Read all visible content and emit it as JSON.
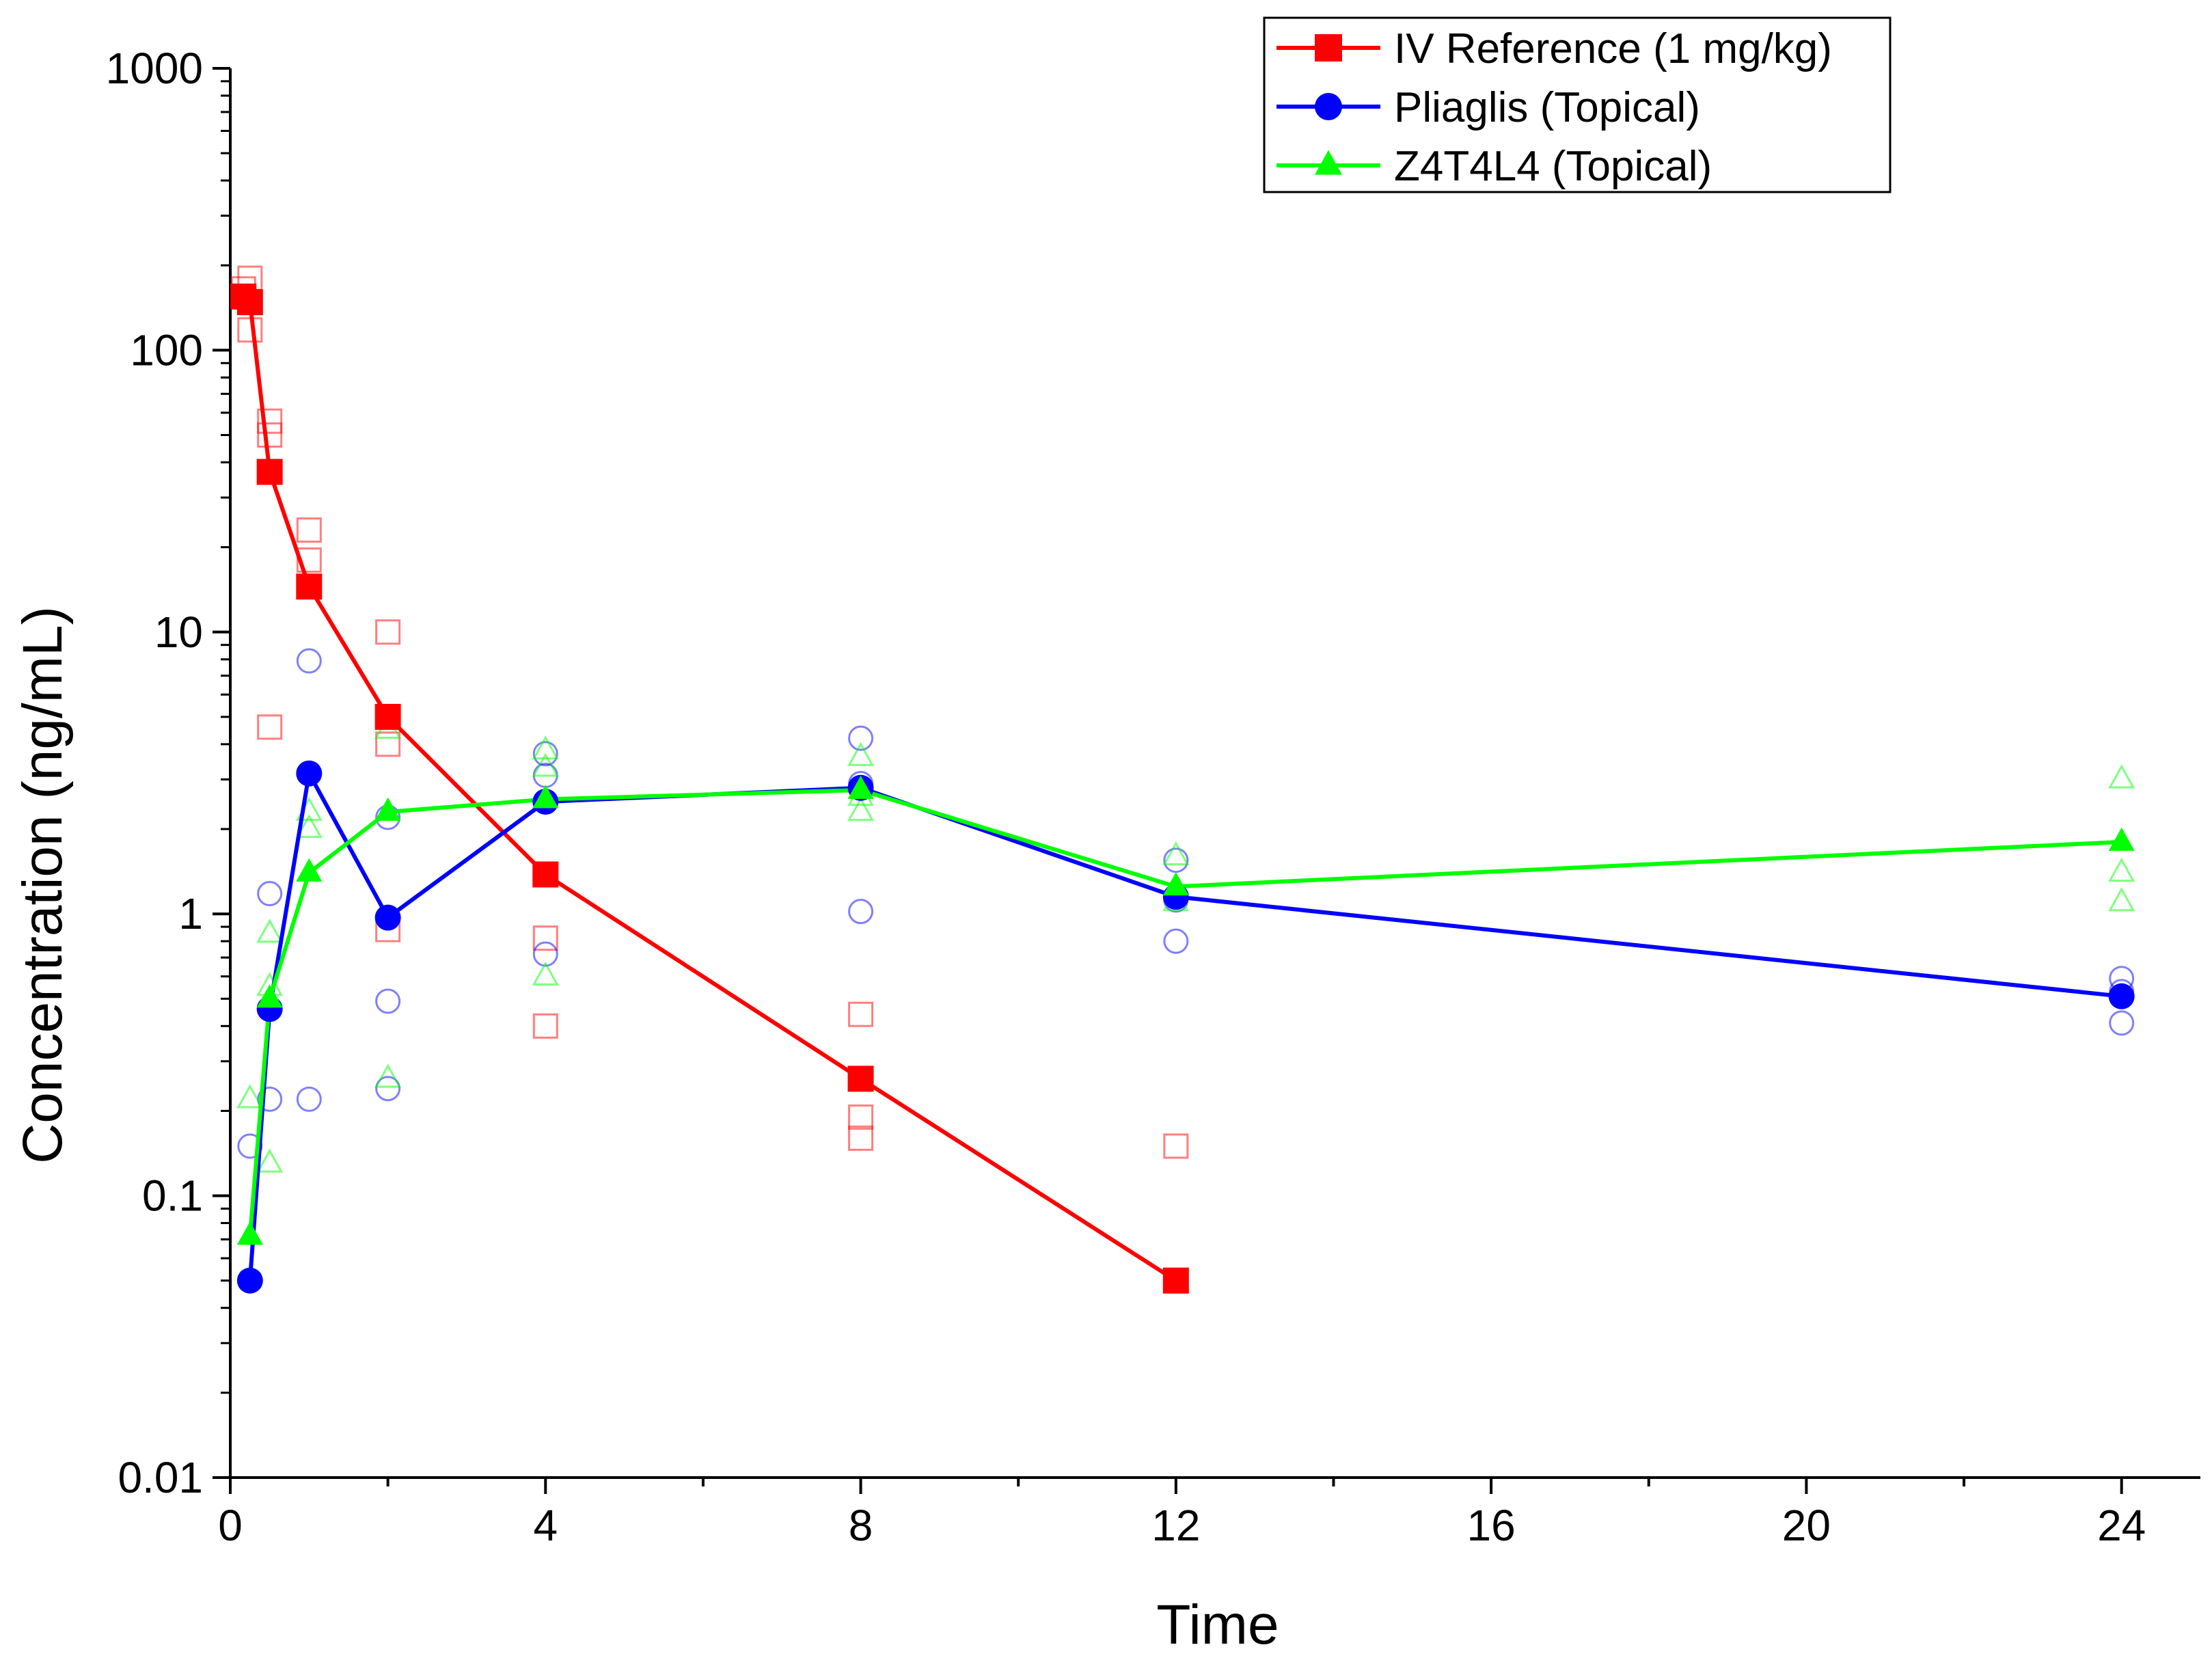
{
  "chart_data": {
    "type": "line",
    "title": "",
    "xlabel": "Time",
    "ylabel": "Concentration (ng/mL)",
    "yscale": "log",
    "xlim": [
      0,
      25
    ],
    "ylim": [
      0.01,
      1000
    ],
    "x_ticks": [
      0,
      4,
      8,
      12,
      16,
      20,
      24
    ],
    "x_tick_labels": [
      "0",
      "4",
      "8",
      "12",
      "16",
      "20",
      "24"
    ],
    "y_ticks": [
      0.01,
      0.1,
      1,
      10,
      100,
      1000
    ],
    "y_tick_labels": [
      "0.01",
      "0.1",
      "1",
      "10",
      "100",
      "1000"
    ],
    "grid": false,
    "legend_position": "top-right",
    "series": [
      {
        "name": "IV Reference (1 mg/kg)",
        "color": "#ff0000",
        "marker": "square",
        "mean": {
          "x": [
            0.167,
            0.25,
            0.5,
            1,
            2,
            4,
            8,
            12
          ],
          "y": [
            155,
            148,
            37,
            14.5,
            5.0,
            1.38,
            0.26,
            0.05
          ]
        },
        "individuals": {
          "x": [
            0.167,
            0.25,
            0.25,
            0.5,
            0.5,
            0.5,
            1,
            1,
            2,
            2,
            2,
            4,
            4,
            8,
            8,
            8,
            12
          ],
          "y": [
            165,
            180,
            118,
            56,
            50,
            4.6,
            23,
            18,
            10,
            4.0,
            0.88,
            0.82,
            0.4,
            0.44,
            0.19,
            0.16,
            0.15
          ]
        }
      },
      {
        "name": "Pliaglis (Topical)",
        "color": "#0000ff",
        "marker": "circle",
        "mean": {
          "x": [
            0.25,
            0.5,
            1,
            2,
            4,
            8,
            12,
            24
          ],
          "y": [
            0.05,
            0.46,
            3.15,
            0.97,
            2.5,
            2.8,
            1.15,
            0.51
          ]
        },
        "individuals": {
          "x": [
            0.25,
            0.5,
            0.5,
            1,
            1,
            2,
            2,
            2,
            4,
            4,
            4,
            8,
            8,
            8,
            12,
            12,
            12,
            24,
            24,
            24
          ],
          "y": [
            0.15,
            1.18,
            0.22,
            7.9,
            0.22,
            2.2,
            0.49,
            0.24,
            3.7,
            3.1,
            0.72,
            4.2,
            2.9,
            1.02,
            1.55,
            1.12,
            0.8,
            0.59,
            0.53,
            0.41
          ]
        }
      },
      {
        "name": "Z4T4L4 (Topical)",
        "color": "#00ff00",
        "marker": "triangle",
        "mean": {
          "x": [
            0.25,
            0.5,
            1,
            2,
            4,
            8,
            12,
            24
          ],
          "y": [
            0.072,
            0.5,
            1.4,
            2.3,
            2.55,
            2.75,
            1.25,
            1.8
          ]
        },
        "individuals": {
          "x": [
            0.25,
            0.5,
            0.5,
            0.5,
            1,
            1,
            2,
            2,
            4,
            4,
            4,
            8,
            8,
            8,
            12,
            12,
            24,
            24,
            24
          ],
          "y": [
            0.22,
            0.85,
            0.55,
            0.13,
            2.3,
            2.0,
            4.5,
            0.26,
            3.8,
            3.3,
            0.6,
            3.6,
            2.6,
            2.3,
            1.6,
            1.1,
            3.0,
            1.4,
            1.1
          ]
        }
      }
    ]
  }
}
